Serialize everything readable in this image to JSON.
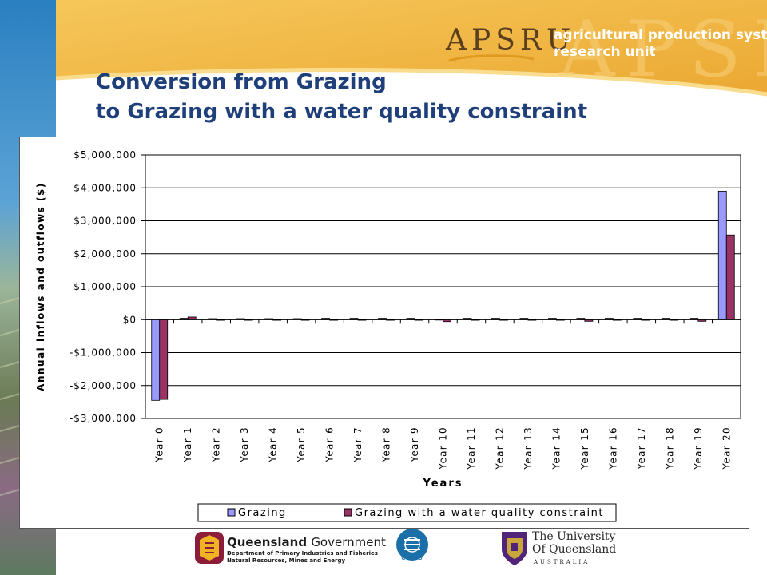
{
  "header": {
    "title_line1": "Conversion from Grazing",
    "title_line2": "to Grazing with a water quality constraint",
    "logo_text": "APSRU",
    "org_line1": "agricultural production systems",
    "org_line2": "research unit"
  },
  "footer": {
    "qld_name": "Queensland",
    "qld_gov": "Government",
    "qld_dept1": "Department of Primary Industries and Fisheries",
    "qld_dept2": "Natural Resources, Mines and Energy",
    "csiro": "CSIRO",
    "uq_line1": "The University",
    "uq_line2": "Of Queensland",
    "uq_line3": "AUSTRALIA"
  },
  "colors": {
    "title": "#1f3f7a",
    "header_gold": "#f2b63c",
    "grazing": "#9999ff",
    "constraint": "#993366"
  },
  "chart_data": {
    "type": "bar",
    "title": "",
    "xlabel": "Years",
    "ylabel": "Annual inflows and outflows ($)",
    "ylim": [
      -3000000,
      5000000
    ],
    "y_ticks": [
      5000000,
      4000000,
      3000000,
      2000000,
      1000000,
      0,
      -1000000,
      -2000000,
      -3000000
    ],
    "y_tick_labels": [
      "$5,000,000",
      "$4,000,000",
      "$3,000,000",
      "$2,000,000",
      "$1,000,000",
      "$0",
      "-$1,000,000",
      "-$2,000,000",
      "-$3,000,000"
    ],
    "grid": true,
    "legend_position": "bottom",
    "categories": [
      "Year 0",
      "Year 1",
      "Year 2",
      "Year 3",
      "Year 4",
      "Year 5",
      "Year 6",
      "Year 7",
      "Year 8",
      "Year 9",
      "Year 10",
      "Year 11",
      "Year 12",
      "Year 13",
      "Year 14",
      "Year 15",
      "Year 16",
      "Year 17",
      "Year 18",
      "Year 19",
      "Year 20"
    ],
    "series": [
      {
        "name": "Grazing",
        "color": "#9999ff",
        "values": [
          -2450000,
          40000,
          30000,
          30000,
          30000,
          30000,
          40000,
          40000,
          40000,
          40000,
          0,
          40000,
          40000,
          40000,
          40000,
          40000,
          40000,
          40000,
          40000,
          40000,
          3900000
        ]
      },
      {
        "name": "Grazing with a water quality constraint",
        "color": "#993366",
        "values": [
          -2420000,
          80000,
          -20000,
          -20000,
          -20000,
          -20000,
          -20000,
          -20000,
          -20000,
          -20000,
          -60000,
          -20000,
          -20000,
          -20000,
          -20000,
          -50000,
          -20000,
          -20000,
          -20000,
          -50000,
          2570000
        ]
      }
    ]
  }
}
